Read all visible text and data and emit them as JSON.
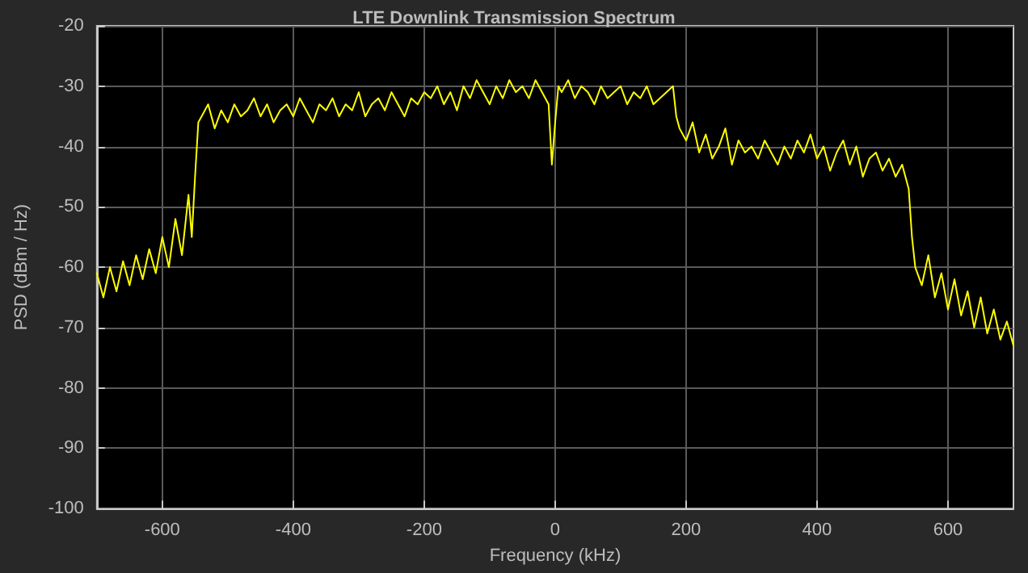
{
  "chart_data": {
    "type": "line",
    "title": "LTE Downlink Transmission Spectrum",
    "xlabel": "Frequency (kHz)",
    "ylabel": "PSD (dBm / Hz)",
    "x": [
      -700,
      -690,
      -680,
      -670,
      -660,
      -650,
      -640,
      -630,
      -620,
      -610,
      -600,
      -590,
      -580,
      -570,
      -560,
      -555,
      -550,
      -545,
      -540,
      -530,
      -520,
      -510,
      -500,
      -490,
      -480,
      -470,
      -460,
      -450,
      -440,
      -430,
      -420,
      -410,
      -400,
      -390,
      -380,
      -370,
      -360,
      -350,
      -340,
      -330,
      -320,
      -310,
      -300,
      -290,
      -280,
      -270,
      -260,
      -250,
      -240,
      -230,
      -220,
      -210,
      -200,
      -190,
      -180,
      -170,
      -160,
      -150,
      -140,
      -130,
      -120,
      -110,
      -100,
      -90,
      -80,
      -70,
      -60,
      -50,
      -40,
      -30,
      -20,
      -10,
      -5,
      0,
      5,
      10,
      20,
      30,
      40,
      50,
      60,
      70,
      80,
      90,
      100,
      110,
      120,
      130,
      140,
      150,
      160,
      170,
      180,
      185,
      190,
      200,
      210,
      220,
      230,
      240,
      250,
      260,
      270,
      280,
      290,
      300,
      310,
      320,
      330,
      340,
      350,
      360,
      370,
      380,
      390,
      400,
      410,
      420,
      430,
      440,
      450,
      460,
      470,
      480,
      490,
      500,
      510,
      520,
      530,
      540,
      545,
      550,
      560,
      570,
      580,
      590,
      600,
      610,
      620,
      630,
      640,
      650,
      660,
      670,
      680,
      690,
      700
    ],
    "series": [
      {
        "color": "#ffff00",
        "values": [
          -61,
          -65,
          -60,
          -64,
          -59,
          -63,
          -58,
          -62,
          -57,
          -61,
          -55,
          -60,
          -52,
          -58,
          -48,
          -55,
          -45,
          -36,
          -35,
          -33,
          -37,
          -34,
          -36,
          -33,
          -35,
          -34,
          -32,
          -35,
          -33,
          -36,
          -34,
          -33,
          -35,
          -32,
          -34,
          -36,
          -33,
          -34,
          -32,
          -35,
          -33,
          -34,
          -31,
          -35,
          -33,
          -32,
          -34,
          -31,
          -33,
          -35,
          -32,
          -33,
          -31,
          -32,
          -30,
          -33,
          -31,
          -34,
          -30,
          -32,
          -29,
          -31,
          -33,
          -30,
          -32,
          -29,
          -31,
          -30,
          -32,
          -29,
          -31,
          -33,
          -43,
          -36,
          -30,
          -31,
          -29,
          -32,
          -30,
          -31,
          -33,
          -30,
          -32,
          -31,
          -30,
          -33,
          -31,
          -32,
          -30,
          -33,
          -32,
          -31,
          -30,
          -35,
          -37,
          -39,
          -36,
          -41,
          -38,
          -42,
          -40,
          -37,
          -43,
          -39,
          -41,
          -40,
          -42,
          -39,
          -41,
          -43,
          -40,
          -42,
          -39,
          -41,
          -38,
          -42,
          -40,
          -44,
          -41,
          -39,
          -43,
          -40,
          -45,
          -42,
          -41,
          -44,
          -42,
          -45,
          -43,
          -47,
          -55,
          -60,
          -63,
          -58,
          -65,
          -61,
          -67,
          -62,
          -68,
          -64,
          -70,
          -65,
          -71,
          -67,
          -72,
          -69,
          -73
        ]
      }
    ],
    "xlim": [
      -700,
      700
    ],
    "xticks": [
      -600,
      -400,
      -200,
      0,
      200,
      400,
      600
    ],
    "ylim": [
      -100,
      -20
    ],
    "yticks": [
      -100,
      -90,
      -80,
      -70,
      -60,
      -50,
      -40,
      -30,
      -20
    ],
    "grid": true,
    "marker": "none",
    "line_style": "solid"
  }
}
